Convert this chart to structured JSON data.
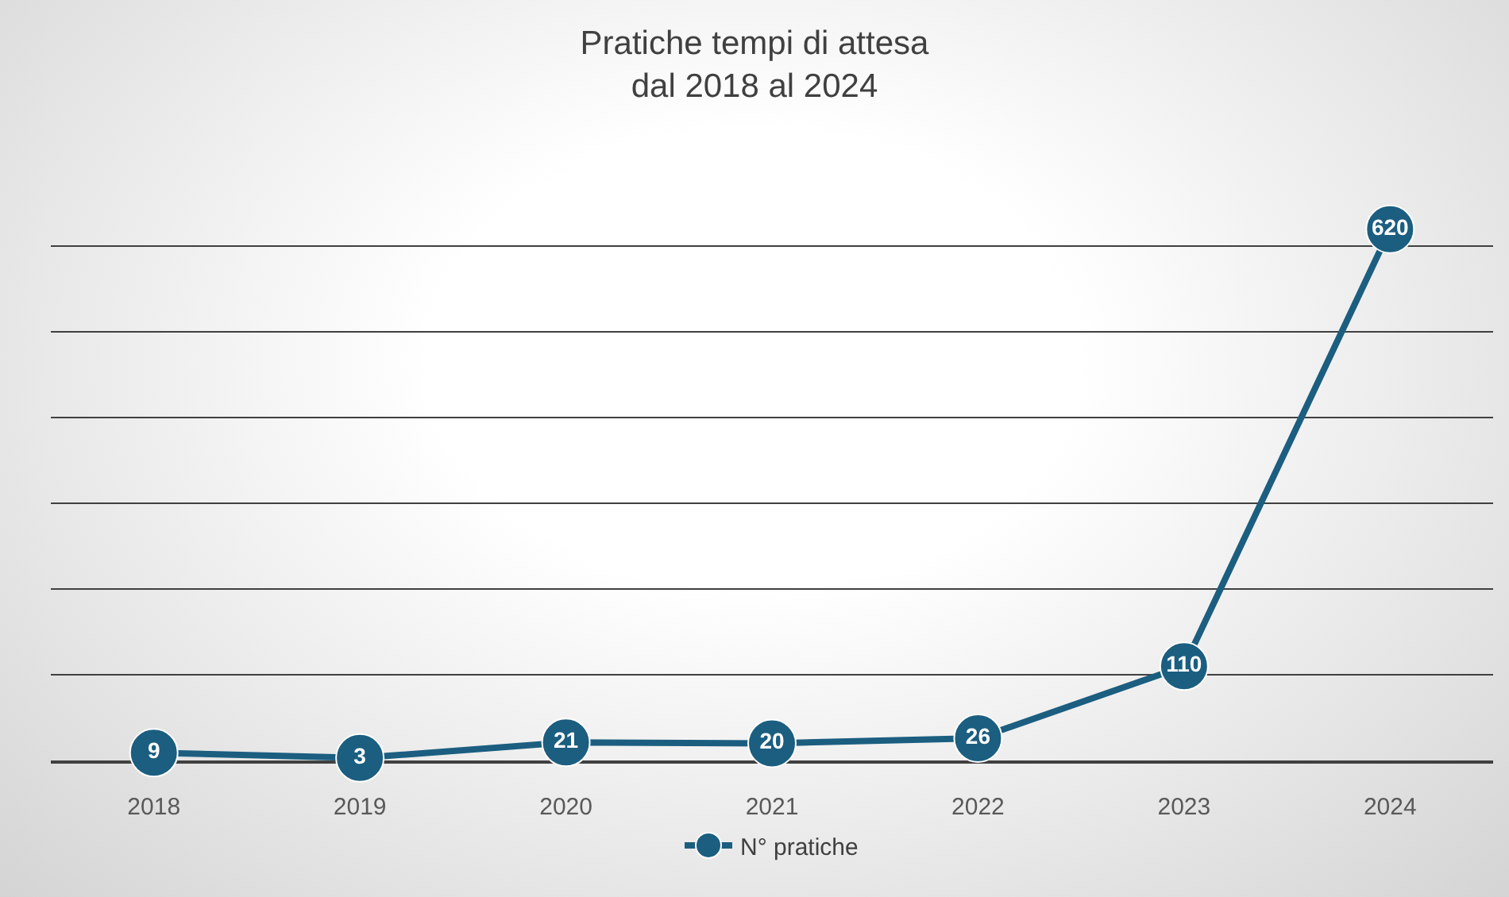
{
  "chart_data": {
    "type": "line",
    "title": "Pratiche tempi di attesa\ndal 2018 al 2024",
    "categories": [
      "2018",
      "2019",
      "2020",
      "2021",
      "2022",
      "2023",
      "2024"
    ],
    "series": [
      {
        "name": "N° pratiche",
        "color": "#1b5e80",
        "values": [
          9,
          3,
          21,
          20,
          26,
          110,
          620
        ]
      }
    ],
    "tick_labels": "x",
    "grid": "y",
    "legend": "bottom",
    "marker": "circle",
    "line_style": "solid",
    "data_labels": true
  }
}
